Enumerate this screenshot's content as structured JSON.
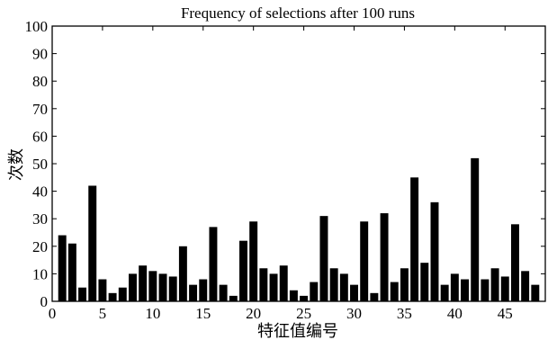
{
  "chart_data": {
    "type": "bar",
    "title": "Frequency of selections after 100 runs",
    "xlabel": "特征值编号",
    "ylabel": "次数",
    "x": [
      1,
      2,
      3,
      4,
      5,
      6,
      7,
      8,
      9,
      10,
      11,
      12,
      13,
      14,
      15,
      16,
      17,
      18,
      19,
      20,
      21,
      22,
      23,
      24,
      25,
      26,
      27,
      28,
      29,
      30,
      31,
      32,
      33,
      34,
      35,
      36,
      37,
      38,
      39,
      40,
      41,
      42,
      43,
      44,
      45,
      46,
      47,
      48
    ],
    "values": [
      24,
      21,
      5,
      42,
      8,
      3,
      5,
      10,
      13,
      11,
      10,
      9,
      20,
      6,
      8,
      27,
      6,
      2,
      22,
      29,
      12,
      10,
      13,
      4,
      2,
      7,
      31,
      12,
      10,
      6,
      29,
      3,
      32,
      7,
      12,
      45,
      14,
      36,
      6,
      10,
      8,
      52,
      8,
      12,
      9,
      28,
      11,
      6
    ],
    "xlim": [
      0,
      49
    ],
    "ylim": [
      0,
      100
    ],
    "xticks": [
      "0",
      "5",
      "10",
      "15",
      "20",
      "25",
      "30",
      "35",
      "40",
      "45"
    ],
    "yticks": [
      "0",
      "10",
      "20",
      "30",
      "40",
      "50",
      "60",
      "70",
      "80",
      "90",
      "100"
    ],
    "grid": false,
    "bar_color": "#000000"
  }
}
